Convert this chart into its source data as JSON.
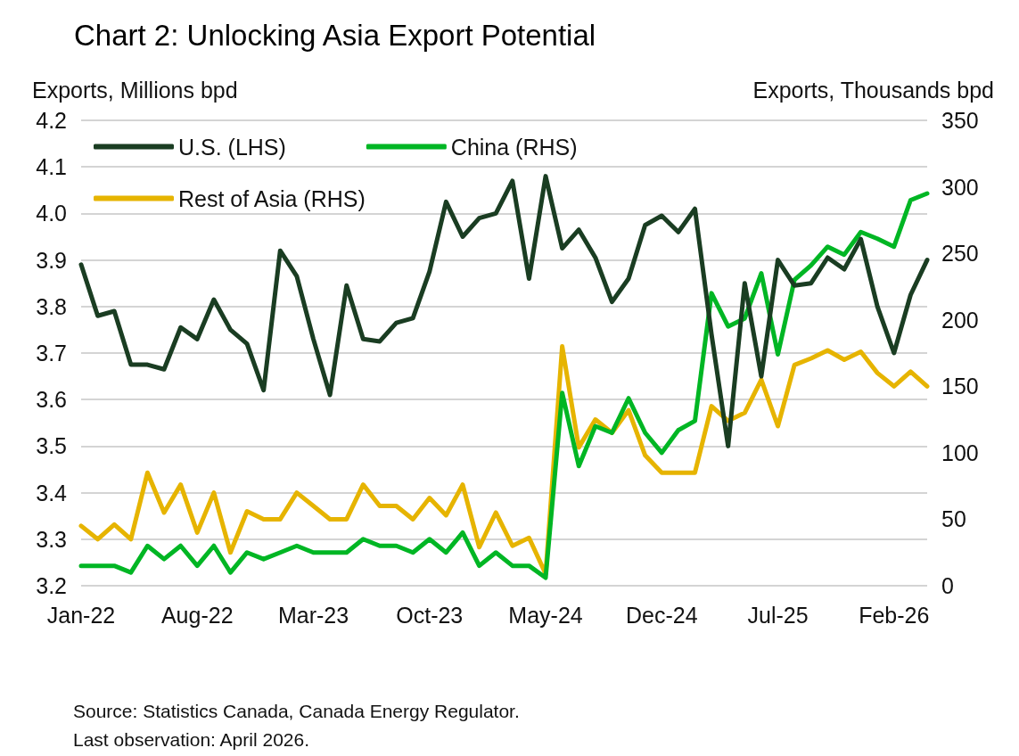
{
  "chart_data": {
    "type": "line",
    "title": "Chart 2: Unlocking Asia Export Potential",
    "ylabel": "Exports, Millions bpd",
    "y2label": "Exports, Thousands bpd",
    "categories": [
      "Jan-22",
      null,
      null,
      null,
      null,
      null,
      null,
      "Aug-22",
      null,
      null,
      null,
      null,
      null,
      null,
      "Mar-23",
      null,
      null,
      null,
      null,
      null,
      null,
      "Oct-23",
      null,
      null,
      null,
      null,
      null,
      null,
      "May-24",
      null,
      null,
      null,
      null,
      null,
      null,
      "Dec-24",
      null,
      null,
      null,
      null,
      null,
      null,
      "Jul-25",
      null,
      null,
      null,
      null,
      null,
      null,
      "Feb-26",
      null,
      null
    ],
    "series": [
      {
        "name": "U.S. (LHS)",
        "color": "#1a3d22",
        "values": [
          3.89,
          3.78,
          3.79,
          3.675,
          3.675,
          3.665,
          3.755,
          3.73,
          3.815,
          3.75,
          3.72,
          3.62,
          3.92,
          3.865,
          3.73,
          3.61,
          3.845,
          3.73,
          3.725,
          3.765,
          3.775,
          3.875,
          4.025,
          3.95,
          3.99,
          4.0,
          4.07,
          3.86,
          4.08,
          3.925,
          3.965,
          3.905,
          3.81,
          3.86,
          3.975,
          3.995,
          3.96,
          4.01,
          3.74,
          3.5,
          3.85,
          3.65,
          3.9,
          3.845,
          3.85,
          3.905,
          3.88,
          3.945,
          3.8,
          3.7,
          3.825,
          3.9
        ]
      },
      {
        "name": "China (RHS)",
        "color": "#00b624",
        "axis": "y2",
        "values": [
          15,
          15,
          15,
          10,
          30,
          20,
          30,
          15,
          30,
          10,
          25,
          20,
          25,
          30,
          25,
          25,
          25,
          35,
          30,
          30,
          25,
          35,
          25,
          40,
          15,
          25,
          15,
          15,
          6,
          145,
          90,
          120,
          115,
          141,
          115,
          100,
          117,
          124,
          220,
          195,
          201,
          235,
          174,
          230,
          241,
          255,
          249,
          266,
          261,
          255,
          290,
          295
        ]
      },
      {
        "name": "Rest of Asia (RHS)",
        "color": "#e6b400",
        "axis": "y2",
        "values": [
          45,
          35,
          46,
          35,
          85,
          55,
          76,
          40,
          70,
          25,
          56,
          50,
          50,
          70,
          60,
          50,
          50,
          76,
          60,
          60,
          50,
          66,
          53,
          76,
          29,
          55,
          30,
          36,
          9,
          180,
          104,
          125,
          115,
          132,
          98,
          85,
          85,
          85,
          135,
          124,
          130,
          155,
          120,
          166,
          171,
          177,
          170,
          176,
          160,
          150,
          161,
          150
        ]
      }
    ],
    "ylim": [
      3.2,
      4.2
    ],
    "yticks": [
      3.2,
      3.3,
      3.4,
      3.5,
      3.6,
      3.7,
      3.8,
      3.9,
      {
        "value": 4,
        "label": "4.0"
      },
      4.1,
      4.2
    ],
    "y2lim": [
      0,
      350
    ],
    "y2ticks": [
      0,
      50,
      100,
      150,
      200,
      250,
      300,
      350
    ],
    "grid": "y",
    "legend": "top left",
    "marker": "none",
    "line_style": "solid",
    "annotations": [
      "Source: Statistics Canada, Canada Energy Regulator.",
      "Last observation: April 2026."
    ]
  }
}
